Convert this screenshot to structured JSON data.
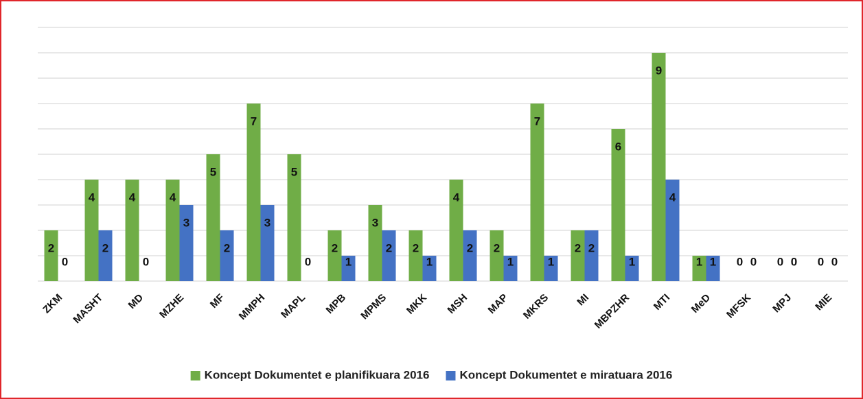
{
  "chart_data": {
    "type": "bar",
    "categories": [
      "ZKM",
      "MASHT",
      "MD",
      "MZHE",
      "MF",
      "MMPH",
      "MAPL",
      "MPB",
      "MPMS",
      "MKK",
      "MSH",
      "MAP",
      "MKRS",
      "MI",
      "MBPZHR",
      "MTI",
      "MeD",
      "MFSK",
      "MPJ",
      "MIE"
    ],
    "series": [
      {
        "name": "Koncept Dokumentet e planifikuara 2016",
        "color": "#70ad47",
        "values": [
          2,
          4,
          4,
          4,
          5,
          7,
          5,
          2,
          3,
          2,
          4,
          2,
          7,
          2,
          6,
          9,
          1,
          0,
          0,
          0
        ]
      },
      {
        "name": "Koncept Dokumentet e miratuara 2016",
        "color": "#4472c4",
        "values": [
          0,
          2,
          0,
          3,
          2,
          3,
          0,
          1,
          2,
          1,
          2,
          1,
          1,
          2,
          1,
          4,
          1,
          0,
          0,
          0
        ]
      }
    ],
    "ylim": [
      0,
      10
    ],
    "yticks": [
      0,
      1,
      2,
      3,
      4,
      5,
      6,
      7,
      8,
      9,
      10
    ],
    "grid": true,
    "legend": "bottom"
  }
}
